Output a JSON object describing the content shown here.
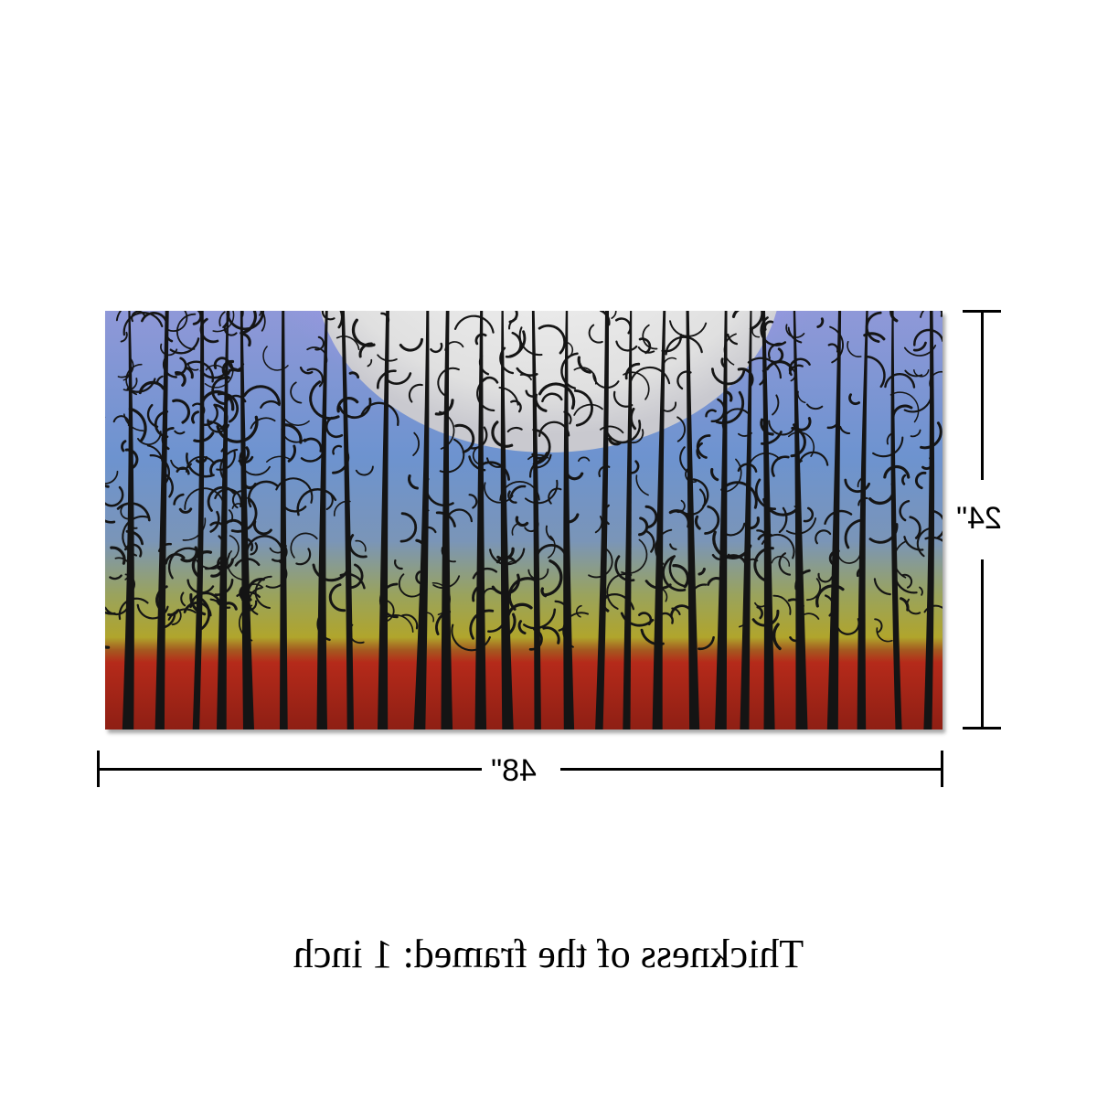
{
  "dimensions": {
    "width_label": "48\"",
    "height_label": "24\""
  },
  "caption": "Thickness of the framed:  1 inch",
  "colors": {
    "sky_top": "#8f98d8",
    "sky_mid": "#6f93cc",
    "band_yellow": "#a6a52b",
    "ground_red": "#b2281a",
    "moon": "#e8e8e8",
    "trees": "#141414"
  }
}
